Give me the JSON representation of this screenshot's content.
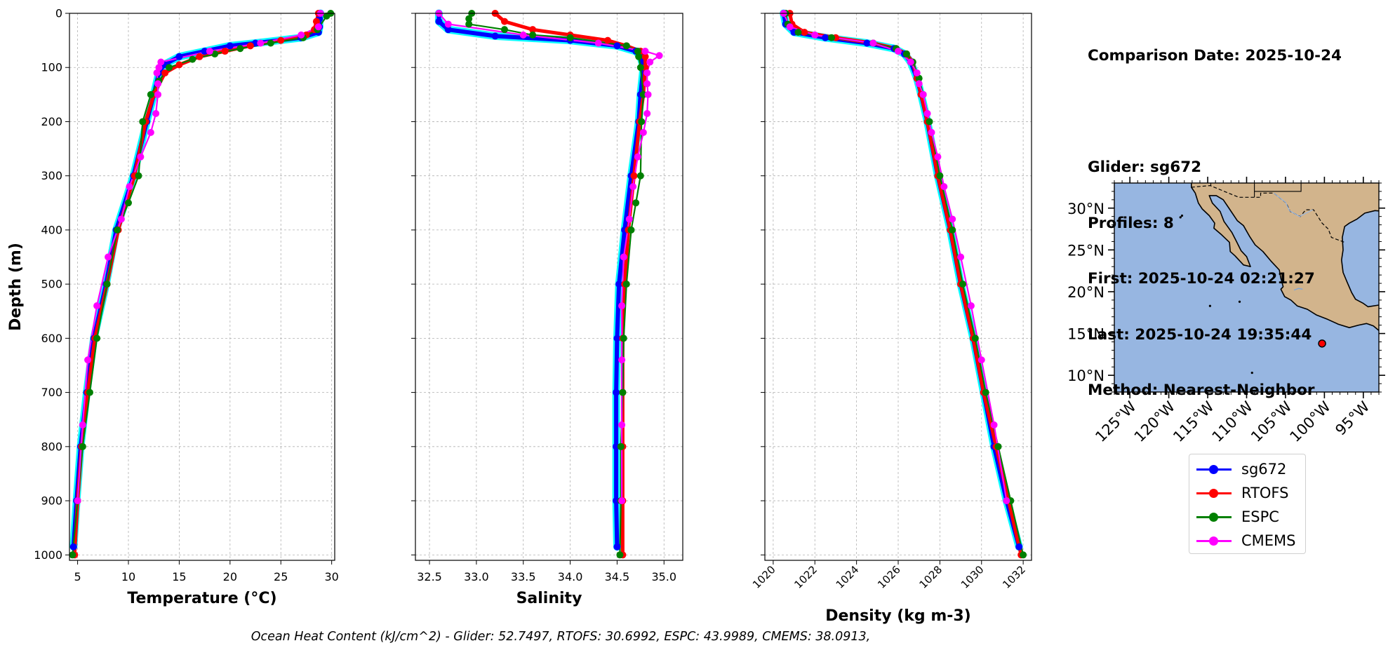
{
  "info": {
    "date_line": "Comparison Date: 2025-10-24",
    "glider_line": "Glider: sg672",
    "profiles_line": "Profiles: 8",
    "first_line": "First: 2025-10-24 02:21:27",
    "last_line": "Last: 2025-10-24 19:35:44",
    "method_line": "Method: Nearest-Neighbor"
  },
  "footer": "Ocean Heat Content (kJ/cm^2) - Glider: 52.7497,  RTOFS: 30.6992,  ESPC: 43.9989,  CMEMS: 38.0913,",
  "legend": [
    {
      "name": "sg672",
      "color": "#0000ff"
    },
    {
      "name": "RTOFS",
      "color": "#ff0000"
    },
    {
      "name": "ESPC",
      "color": "#008000"
    },
    {
      "name": "CMEMS",
      "color": "#ff00ff"
    }
  ],
  "chart_data": [
    {
      "type": "line",
      "xlabel": "Temperature (°C)",
      "ylabel": "Depth (m)",
      "xlim": [
        4.2,
        30.3
      ],
      "ylim": [
        1010,
        0
      ],
      "xticks": [
        5,
        10,
        15,
        20,
        25,
        30
      ],
      "yticks": [
        0,
        100,
        200,
        300,
        400,
        500,
        600,
        700,
        800,
        900,
        1000
      ],
      "grid": true,
      "series": [
        {
          "name": "sg672",
          "color": "#0000ff",
          "envelope": "#00ffff",
          "depth": [
            0,
            10,
            25,
            35,
            45,
            55,
            60,
            70,
            80,
            95,
            110,
            150,
            200,
            300,
            400,
            500,
            600,
            700,
            800,
            900,
            985
          ],
          "values": [
            28.9,
            28.8,
            28.8,
            28.7,
            27,
            22.5,
            20,
            17.5,
            15,
            13.5,
            13,
            12.5,
            11.8,
            10.5,
            8.8,
            7.8,
            6.6,
            5.9,
            5.3,
            4.9,
            4.6
          ]
        },
        {
          "name": "RTOFS",
          "color": "#ff0000",
          "depth": [
            0,
            15,
            30,
            40,
            50,
            60,
            70,
            80,
            95,
            110,
            150,
            200,
            300,
            400,
            500,
            600,
            700,
            800,
            900,
            1000
          ],
          "values": [
            28.7,
            28.5,
            28.3,
            27.5,
            25,
            22,
            19.5,
            17,
            15,
            13.6,
            12.5,
            11.7,
            10.6,
            9,
            7.9,
            6.7,
            6,
            5.4,
            5,
            4.7
          ]
        },
        {
          "name": "ESPC",
          "color": "#008000",
          "depth": [
            0,
            5,
            30,
            45,
            55,
            65,
            75,
            85,
            100,
            125,
            150,
            200,
            300,
            350,
            400,
            500,
            600,
            700,
            800,
            900,
            1000
          ],
          "values": [
            29.9,
            29.5,
            28.6,
            27.2,
            24,
            21,
            18.5,
            16.3,
            14,
            13,
            12.2,
            11.4,
            11,
            10,
            8.9,
            7.9,
            6.9,
            6.2,
            5.5,
            5,
            4.5
          ]
        },
        {
          "name": "CMEMS",
          "color": "#ff00ff",
          "depth": [
            0,
            25,
            40,
            55,
            70,
            90,
            100,
            110,
            130,
            150,
            185,
            220,
            265,
            320,
            380,
            450,
            540,
            640,
            760,
            900
          ],
          "values": [
            28.9,
            28.7,
            27,
            23,
            18,
            13.2,
            13,
            12.8,
            12.9,
            12.9,
            12.7,
            12.2,
            11.2,
            10.1,
            9.3,
            8,
            6.9,
            6,
            5.5,
            5
          ]
        }
      ]
    },
    {
      "type": "line",
      "xlabel": "Salinity",
      "ylabel": "",
      "xlim": [
        32.35,
        35.2
      ],
      "ylim": [
        1010,
        0
      ],
      "xticks": [
        "32.5",
        "33.0",
        "33.5",
        "34.0",
        "34.5",
        "35.0"
      ],
      "yticks": [
        0,
        100,
        200,
        300,
        400,
        500,
        600,
        700,
        800,
        900,
        1000
      ],
      "grid": true,
      "series": [
        {
          "name": "sg672",
          "color": "#0000ff",
          "envelope": "#00ffff",
          "depth": [
            0,
            15,
            30,
            42,
            50,
            60,
            70,
            80,
            100,
            150,
            200,
            300,
            400,
            500,
            600,
            700,
            800,
            900,
            985
          ],
          "values": [
            32.6,
            32.6,
            32.7,
            33.2,
            34,
            34.5,
            34.7,
            34.75,
            34.78,
            34.75,
            34.73,
            34.65,
            34.58,
            34.52,
            34.5,
            34.49,
            34.49,
            34.49,
            34.5
          ]
        },
        {
          "name": "RTOFS",
          "color": "#ff0000",
          "depth": [
            0,
            15,
            30,
            40,
            50,
            60,
            70,
            80,
            100,
            150,
            200,
            300,
            400,
            500,
            600,
            700,
            800,
            900,
            1000
          ],
          "values": [
            33.2,
            33.3,
            33.6,
            34,
            34.4,
            34.6,
            34.75,
            34.8,
            34.8,
            34.78,
            34.74,
            34.68,
            34.62,
            34.58,
            34.56,
            34.56,
            34.56,
            34.56,
            34.56
          ]
        },
        {
          "name": "ESPC",
          "color": "#008000",
          "depth": [
            0,
            10,
            20,
            30,
            40,
            45,
            60,
            70,
            80,
            100,
            150,
            200,
            300,
            350,
            400,
            500,
            600,
            700,
            800,
            900,
            1000
          ],
          "values": [
            32.95,
            32.92,
            32.92,
            33.3,
            33.6,
            34,
            34.6,
            34.72,
            34.73,
            34.75,
            34.78,
            34.76,
            34.75,
            34.7,
            34.65,
            34.6,
            34.57,
            34.56,
            34.54,
            34.54,
            34.53
          ]
        },
        {
          "name": "CMEMS",
          "color": "#ff00ff",
          "depth": [
            0,
            20,
            40,
            55,
            70,
            78,
            90,
            110,
            130,
            150,
            185,
            220,
            265,
            320,
            380,
            450,
            540,
            640,
            760,
            900
          ],
          "values": [
            32.6,
            32.7,
            33.5,
            34.3,
            34.8,
            34.95,
            34.85,
            34.82,
            34.82,
            34.83,
            34.82,
            34.78,
            34.72,
            34.67,
            34.63,
            34.57,
            34.55,
            34.55,
            34.55,
            34.55
          ]
        }
      ]
    },
    {
      "type": "line",
      "xlabel": "Density (kg m-3)",
      "ylabel": "",
      "xlim": [
        1019.6,
        1032.4
      ],
      "ylim": [
        1010,
        0
      ],
      "xticks": [
        1020,
        1022,
        1024,
        1026,
        1028,
        1030,
        1032
      ],
      "yticks": [
        0,
        100,
        200,
        300,
        400,
        500,
        600,
        700,
        800,
        900,
        1000
      ],
      "grid": true,
      "series": [
        {
          "name": "sg672",
          "color": "#0000ff",
          "envelope": "#00ffff",
          "depth": [
            0,
            20,
            35,
            45,
            55,
            65,
            75,
            90,
            120,
            150,
            200,
            300,
            400,
            500,
            600,
            700,
            800,
            900,
            985
          ],
          "values": [
            1020.5,
            1020.6,
            1021,
            1022.5,
            1024.5,
            1025.8,
            1026.3,
            1026.6,
            1026.9,
            1027.1,
            1027.4,
            1027.9,
            1028.5,
            1029,
            1029.6,
            1030.1,
            1030.6,
            1031.2,
            1031.8
          ]
        },
        {
          "name": "RTOFS",
          "color": "#ff0000",
          "depth": [
            0,
            20,
            35,
            45,
            55,
            65,
            75,
            90,
            120,
            150,
            200,
            300,
            400,
            500,
            600,
            700,
            800,
            900,
            1000
          ],
          "values": [
            1020.8,
            1020.9,
            1021.5,
            1023,
            1024.8,
            1025.9,
            1026.4,
            1026.7,
            1026.9,
            1027.1,
            1027.4,
            1027.9,
            1028.5,
            1029,
            1029.6,
            1030.1,
            1030.7,
            1031.3,
            1031.9
          ]
        },
        {
          "name": "ESPC",
          "color": "#008000",
          "depth": [
            0,
            20,
            35,
            45,
            55,
            65,
            75,
            90,
            120,
            150,
            200,
            300,
            400,
            500,
            600,
            700,
            800,
            900,
            1000
          ],
          "values": [
            1020.6,
            1020.7,
            1021.2,
            1022.8,
            1024.8,
            1025.9,
            1026.4,
            1026.7,
            1027,
            1027.2,
            1027.5,
            1028,
            1028.6,
            1029.1,
            1029.7,
            1030.2,
            1030.8,
            1031.4,
            1032
          ]
        },
        {
          "name": "CMEMS",
          "color": "#ff00ff",
          "depth": [
            0,
            25,
            40,
            55,
            70,
            90,
            110,
            130,
            150,
            185,
            220,
            265,
            320,
            380,
            450,
            540,
            640,
            760,
            900
          ],
          "values": [
            1020.5,
            1020.8,
            1022,
            1024.8,
            1026,
            1026.6,
            1026.9,
            1027,
            1027.2,
            1027.4,
            1027.6,
            1027.9,
            1028.2,
            1028.6,
            1029,
            1029.5,
            1030,
            1030.6,
            1031.2
          ]
        }
      ]
    },
    {
      "type": "map",
      "lon_range": [
        -127,
        -93
      ],
      "lat_range": [
        8,
        33
      ],
      "xticks": [
        "125°W",
        "120°W",
        "115°W",
        "110°W",
        "105°W",
        "100°W",
        "95°W"
      ],
      "yticks": [
        "30°N",
        "25°N",
        "20°N",
        "15°N",
        "10°N"
      ],
      "ocean_color": "#97b6e1",
      "land_color": "#d2b48c",
      "glider_position": {
        "lon": -100.3,
        "lat": 13.8,
        "color": "#ff0000"
      }
    }
  ]
}
